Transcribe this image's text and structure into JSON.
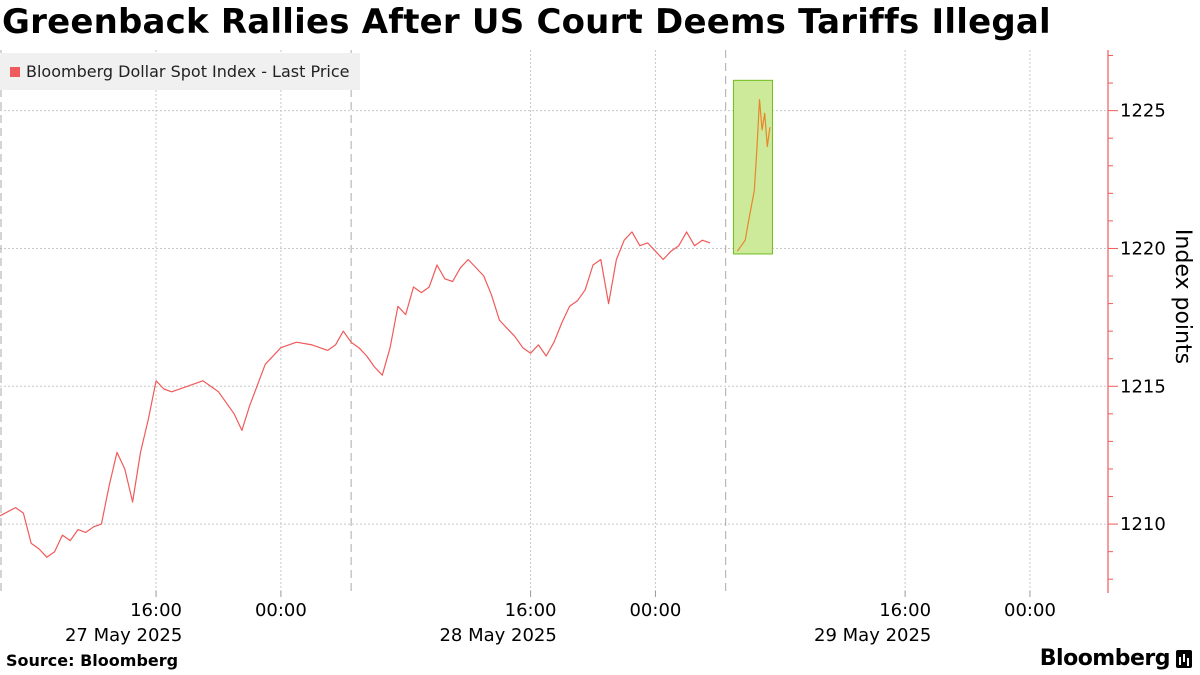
{
  "chart_data": {
    "type": "line",
    "title": "Greenback Rallies After US Court Deems Tariffs Illegal",
    "ylabel": "Index points",
    "ylim": [
      1207.5,
      1227.2
    ],
    "yticks": [
      1210,
      1215,
      1220,
      1225
    ],
    "x_range": [
      "2025-05-27 06:00",
      "2025-05-30 05:00"
    ],
    "xticks": [
      {
        "time": "2025-05-27 16:00",
        "label": "16:00"
      },
      {
        "time": "2025-05-28 00:00",
        "label": "00:00"
      },
      {
        "time": "2025-05-28 16:00",
        "label": "16:00"
      },
      {
        "time": "2025-05-29 00:00",
        "label": "00:00"
      },
      {
        "time": "2025-05-29 16:00",
        "label": "16:00"
      },
      {
        "time": "2025-05-30 00:00",
        "label": "00:00"
      }
    ],
    "day_labels": [
      {
        "time": "2025-05-27 12:00",
        "label": "27 May 2025"
      },
      {
        "time": "2025-05-28 12:00",
        "label": "28 May 2025"
      },
      {
        "time": "2025-05-29 12:00",
        "label": "29 May 2025"
      }
    ],
    "session_breaks": [
      "2025-05-27 06:00",
      "2025-05-28 04:30",
      "2025-05-29 04:30"
    ],
    "legend_position": "top-left",
    "grid": true,
    "colors": {
      "line": "#f05a5a",
      "highlight_line": "#e8862a",
      "highlight_fill": "#cde99a",
      "highlight_border": "#6fbf1f",
      "axis": "#f05a5a"
    },
    "highlight_region": {
      "x": [
        "2025-05-29 05:00",
        "2025-05-29 07:30"
      ],
      "y": [
        1219.8,
        1226.1
      ]
    },
    "series": [
      {
        "name": "Bloomberg Dollar Spot Index - Last Price",
        "points": [
          [
            "2025-05-27 06:00",
            1210.3
          ],
          [
            "2025-05-27 07:00",
            1210.6
          ],
          [
            "2025-05-27 07:30",
            1210.4
          ],
          [
            "2025-05-27 08:00",
            1209.3
          ],
          [
            "2025-05-27 08:30",
            1209.1
          ],
          [
            "2025-05-27 09:00",
            1208.8
          ],
          [
            "2025-05-27 09:30",
            1209.0
          ],
          [
            "2025-05-27 10:00",
            1209.6
          ],
          [
            "2025-05-27 10:30",
            1209.4
          ],
          [
            "2025-05-27 11:00",
            1209.8
          ],
          [
            "2025-05-27 11:30",
            1209.7
          ],
          [
            "2025-05-27 12:00",
            1209.9
          ],
          [
            "2025-05-27 12:30",
            1210.0
          ],
          [
            "2025-05-27 13:00",
            1211.4
          ],
          [
            "2025-05-27 13:30",
            1212.6
          ],
          [
            "2025-05-27 14:00",
            1212.0
          ],
          [
            "2025-05-27 14:30",
            1210.8
          ],
          [
            "2025-05-27 15:00",
            1212.6
          ],
          [
            "2025-05-27 15:30",
            1213.8
          ],
          [
            "2025-05-27 16:00",
            1215.2
          ],
          [
            "2025-05-27 16:30",
            1214.9
          ],
          [
            "2025-05-27 17:00",
            1214.8
          ],
          [
            "2025-05-27 18:00",
            1215.0
          ],
          [
            "2025-05-27 19:00",
            1215.2
          ],
          [
            "2025-05-27 20:00",
            1214.8
          ],
          [
            "2025-05-27 21:00",
            1214.0
          ],
          [
            "2025-05-27 21:30",
            1213.4
          ],
          [
            "2025-05-27 22:00",
            1214.3
          ],
          [
            "2025-05-27 23:00",
            1215.8
          ],
          [
            "2025-05-28 00:00",
            1216.4
          ],
          [
            "2025-05-28 01:00",
            1216.6
          ],
          [
            "2025-05-28 02:00",
            1216.5
          ],
          [
            "2025-05-28 03:00",
            1216.3
          ],
          [
            "2025-05-28 03:30",
            1216.5
          ],
          [
            "2025-05-28 04:00",
            1217.0
          ],
          [
            "2025-05-28 04:30",
            1216.6
          ],
          [
            "2025-05-28 05:00",
            1216.4
          ],
          [
            "2025-05-28 05:30",
            1216.1
          ],
          [
            "2025-05-28 06:00",
            1215.7
          ],
          [
            "2025-05-28 06:30",
            1215.4
          ],
          [
            "2025-05-28 07:00",
            1216.4
          ],
          [
            "2025-05-28 07:30",
            1217.9
          ],
          [
            "2025-05-28 08:00",
            1217.6
          ],
          [
            "2025-05-28 08:30",
            1218.6
          ],
          [
            "2025-05-28 09:00",
            1218.4
          ],
          [
            "2025-05-28 09:30",
            1218.6
          ],
          [
            "2025-05-28 10:00",
            1219.4
          ],
          [
            "2025-05-28 10:30",
            1218.9
          ],
          [
            "2025-05-28 11:00",
            1218.8
          ],
          [
            "2025-05-28 11:30",
            1219.3
          ],
          [
            "2025-05-28 12:00",
            1219.6
          ],
          [
            "2025-05-28 13:00",
            1219.0
          ],
          [
            "2025-05-28 13:30",
            1218.3
          ],
          [
            "2025-05-28 14:00",
            1217.4
          ],
          [
            "2025-05-28 15:00",
            1216.8
          ],
          [
            "2025-05-28 15:30",
            1216.4
          ],
          [
            "2025-05-28 16:00",
            1216.2
          ],
          [
            "2025-05-28 16:30",
            1216.5
          ],
          [
            "2025-05-28 17:00",
            1216.1
          ],
          [
            "2025-05-28 17:30",
            1216.6
          ],
          [
            "2025-05-28 18:00",
            1217.3
          ],
          [
            "2025-05-28 18:30",
            1217.9
          ],
          [
            "2025-05-28 19:00",
            1218.1
          ],
          [
            "2025-05-28 19:30",
            1218.5
          ],
          [
            "2025-05-28 20:00",
            1219.4
          ],
          [
            "2025-05-28 20:30",
            1219.6
          ],
          [
            "2025-05-28 21:00",
            1218.0
          ],
          [
            "2025-05-28 21:30",
            1219.6
          ],
          [
            "2025-05-28 22:00",
            1220.3
          ],
          [
            "2025-05-28 22:30",
            1220.6
          ],
          [
            "2025-05-28 23:00",
            1220.1
          ],
          [
            "2025-05-28 23:30",
            1220.2
          ],
          [
            "2025-05-29 00:00",
            1219.9
          ],
          [
            "2025-05-29 00:30",
            1219.6
          ],
          [
            "2025-05-29 01:00",
            1219.9
          ],
          [
            "2025-05-29 01:30",
            1220.1
          ],
          [
            "2025-05-29 02:00",
            1220.6
          ],
          [
            "2025-05-29 02:30",
            1220.1
          ],
          [
            "2025-05-29 03:00",
            1220.3
          ],
          [
            "2025-05-29 03:30",
            1220.2
          ]
        ]
      },
      {
        "name": "",
        "points": [
          [
            "2025-05-29 05:15",
            1219.9
          ],
          [
            "2025-05-29 05:30",
            1220.1
          ],
          [
            "2025-05-29 05:45",
            1220.3
          ],
          [
            "2025-05-29 06:00",
            1221.1
          ],
          [
            "2025-05-29 06:10",
            1221.6
          ],
          [
            "2025-05-29 06:20",
            1222.1
          ],
          [
            "2025-05-29 06:30",
            1223.6
          ],
          [
            "2025-05-29 06:40",
            1225.4
          ],
          [
            "2025-05-29 06:50",
            1224.3
          ],
          [
            "2025-05-29 07:00",
            1224.9
          ],
          [
            "2025-05-29 07:10",
            1223.7
          ],
          [
            "2025-05-29 07:20",
            1224.4
          ]
        ]
      }
    ]
  },
  "legend": {
    "label": "Bloomberg Dollar Spot Index - Last Price",
    "color": "#f05a5a"
  },
  "footer": {
    "source": "Source: Bloomberg",
    "brand": "Bloomberg"
  }
}
